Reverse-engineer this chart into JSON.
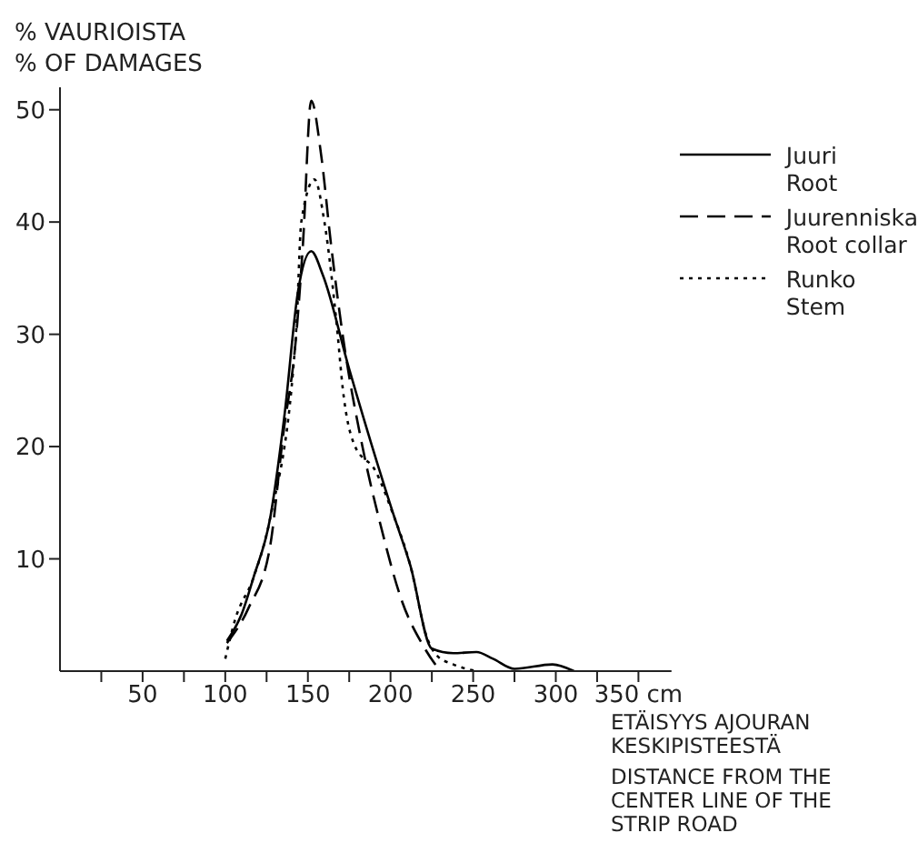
{
  "chart_data": {
    "type": "line",
    "xlabel": "ETÄISYYS AJOURAN\nKESKIPISTEESTÄ\nDISTANCE FROM THE\nCENTER LINE OF THE\nSTRIP ROAD",
    "ylabel": "% VAURIOISTA\n% OF DAMAGES",
    "xlim": [
      0,
      370
    ],
    "ylim": [
      0,
      52
    ],
    "xticks": [
      {
        "value": 25,
        "label": null
      },
      50,
      {
        "value": 75,
        "label": null
      },
      100,
      {
        "value": 125,
        "label": null
      },
      150,
      {
        "value": 175,
        "label": null
      },
      200,
      {
        "value": 225,
        "label": null
      },
      250,
      {
        "value": 275,
        "label": null
      },
      300,
      {
        "value": 325,
        "label": null
      },
      {
        "value": 350,
        "label": "350 cm"
      }
    ],
    "yticks": [
      10,
      20,
      30,
      40,
      50
    ],
    "grid": false,
    "legend": "top right",
    "marker": "none",
    "series": [
      {
        "name": "Juuri\nRoot",
        "color": "#000000",
        "line_style": "solid",
        "x": [
          101,
          110,
          117,
          127,
          136,
          144,
          152,
          159,
          175,
          201,
          212,
          225,
          238,
          252,
          262,
          275,
          298,
          311
        ],
        "values": [
          2.7,
          5.1,
          8.3,
          13.5,
          23,
          33.8,
          37.4,
          35.3,
          26.9,
          14.3,
          9.4,
          2,
          1.6,
          1.7,
          1.1,
          0.2,
          0.6,
          0
        ]
      },
      {
        "name": "Juurenniska\nRoot collar",
        "color": "#000000",
        "line_style": "dashed",
        "x": [
          101,
          114,
          127,
          135,
          143,
          147,
          152,
          158,
          164,
          171,
          183,
          194,
          207,
          220,
          230
        ],
        "values": [
          2.5,
          5.6,
          11,
          21,
          30,
          38,
          50.8,
          46,
          38,
          30,
          20,
          13,
          6.2,
          2.2,
          0
        ]
      },
      {
        "name": "Runko\nStem",
        "color": "#000000",
        "line_style": "dotted",
        "x": [
          100,
          106,
          117,
          127,
          143,
          146,
          154,
          160,
          168,
          171,
          178,
          191,
          201,
          212,
          222,
          228,
          238,
          252
        ],
        "values": [
          1.1,
          4.6,
          8.3,
          13.5,
          30.5,
          40,
          43.8,
          40,
          30,
          25.3,
          20.2,
          17.8,
          14.2,
          9.4,
          3,
          1.4,
          0.6,
          0
        ]
      }
    ]
  }
}
